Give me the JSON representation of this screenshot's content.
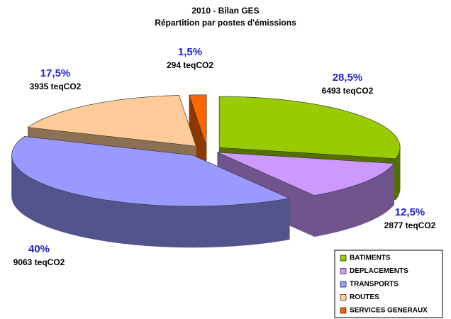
{
  "chart_data": {
    "type": "pie3d",
    "title": "2010 - Bilan GES",
    "subtitle": "Répartition par postes d'émissions",
    "categories": [
      "BATIMENTS",
      "DEPLACEMENTS",
      "TRANSPORTS",
      "ROUTES",
      "SERVICES GENERAUX"
    ],
    "values": [
      28.5,
      12.5,
      40,
      17.5,
      1.5
    ],
    "value_labels": [
      "28,5%",
      "12,5%",
      "40%",
      "17,5%",
      "1,5%"
    ],
    "sublabels": [
      "6493 teqCO2",
      "2877 teqCO2",
      "9063 teqCO2",
      "3935 teqCO2",
      "294 teqCO2"
    ],
    "colors": [
      "#99cc00",
      "#cc99ff",
      "#9999ff",
      "#ffcc99",
      "#ff6600"
    ],
    "legend": "bottom-right"
  }
}
